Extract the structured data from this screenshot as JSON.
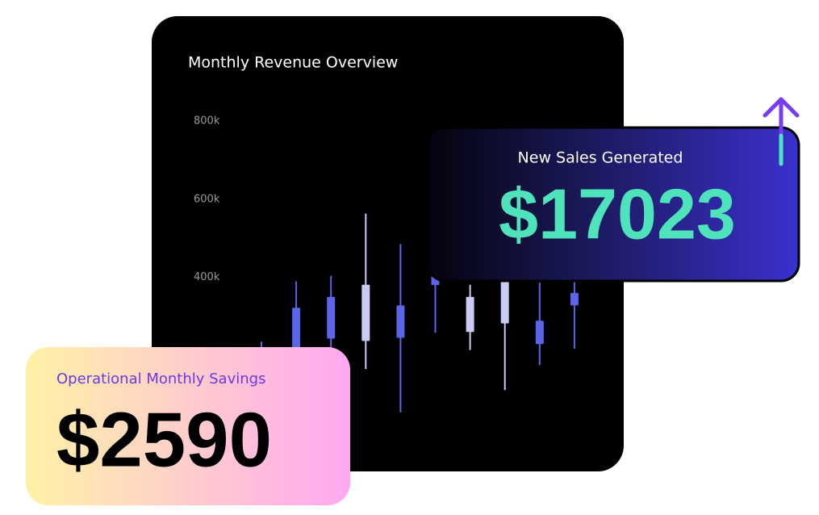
{
  "chart_data": {
    "type": "candlestick",
    "title": "Monthly Revenue Overview",
    "up_color": "#c9cbf6",
    "down_color": "#5c64e8",
    "ylim": [
      0,
      800000
    ],
    "yticks": [
      {
        "value": 400000,
        "label": "400k"
      },
      {
        "value": 600000,
        "label": "600k"
      },
      {
        "value": 800000,
        "label": "800k"
      }
    ],
    "open": [
      200000,
      322000,
      350000,
      237000,
      328000,
      420000,
      260000,
      282000,
      289000,
      360000
    ],
    "high": [
      235000,
      390000,
      404000,
      563000,
      485000,
      450000,
      381000,
      420000,
      386000,
      400000
    ],
    "low": [
      120000,
      150000,
      190000,
      165000,
      54000,
      258000,
      214000,
      111000,
      175000,
      217000
    ],
    "close": [
      180000,
      200000,
      243000,
      381000,
      245000,
      380000,
      350000,
      390000,
      229000,
      328000
    ]
  },
  "sales_card": {
    "label": "New Sales Generated",
    "value": "$17023"
  },
  "savings_card": {
    "label": "Operational Monthly Savings",
    "value": "$2590"
  }
}
